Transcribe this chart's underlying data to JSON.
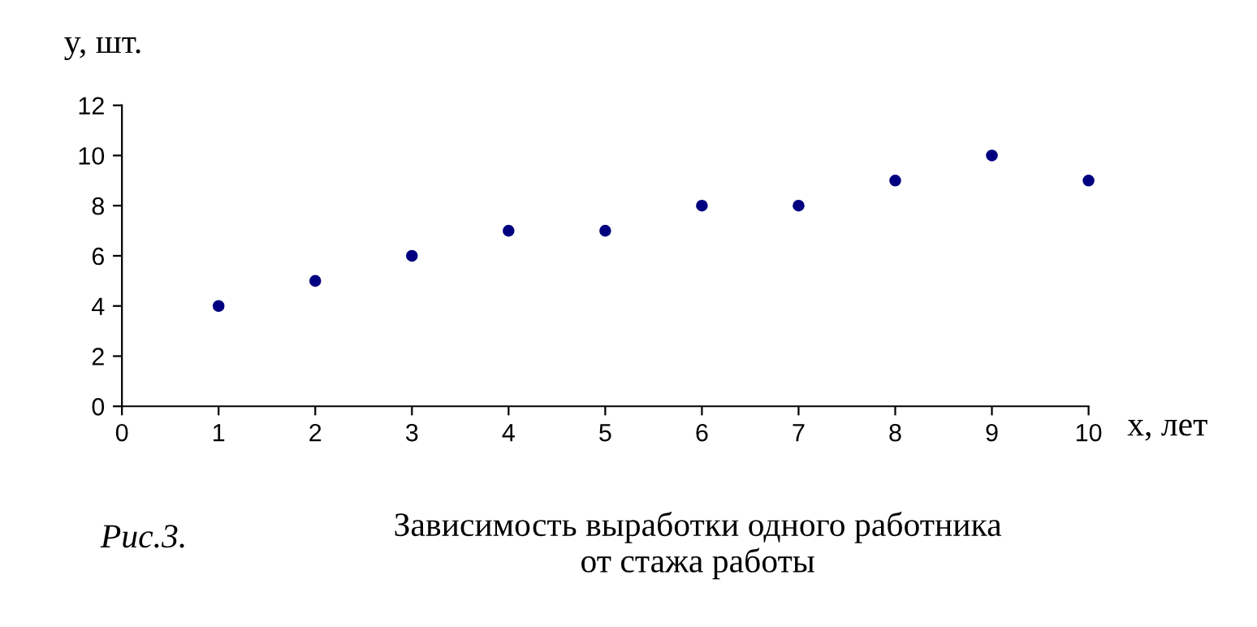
{
  "chart_data": {
    "type": "scatter",
    "title": "Зависимость выработки одного работника\nот стажа работы",
    "xlabel": "x, лет",
    "ylabel": "y, шт.",
    "annotations": [
      "Рис.3."
    ],
    "x": [
      1,
      2,
      3,
      4,
      5,
      6,
      7,
      8,
      9,
      10
    ],
    "series": [
      {
        "color": "#000080",
        "values": [
          4,
          5,
          6,
          7,
          7,
          8,
          8,
          9,
          10,
          9
        ]
      }
    ],
    "xlim": [
      0,
      10
    ],
    "ylim": [
      0,
      12
    ],
    "xticks": [
      0,
      1,
      2,
      3,
      4,
      5,
      6,
      7,
      8,
      9,
      10
    ],
    "yticks": [
      0,
      2,
      4,
      6,
      8,
      10,
      12
    ],
    "marker": "circle",
    "grid": false,
    "legend": false
  }
}
